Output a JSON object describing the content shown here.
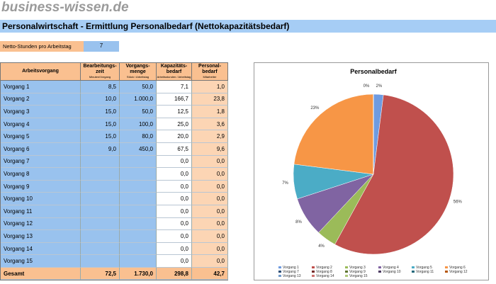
{
  "header": {
    "logo": "business-wissen.de",
    "title": "Personalwirtschaft - Ermittlung Personalbedarf (Nettokapazitätsbedarf)"
  },
  "input": {
    "label": "Netto-Stunden pro Arbeitstag",
    "value": 7
  },
  "table": {
    "columns": [
      {
        "lines": [
          "Arbeitsvorgang"
        ]
      },
      {
        "lines": [
          "Bearbeitungs-",
          "zeit"
        ],
        "unit": "Minuten/Vorgang"
      },
      {
        "lines": [
          "Vorgangs-",
          "menge"
        ],
        "unit": "Stück / Arbeitstag"
      },
      {
        "lines": [
          "Kapazitäts-",
          "bedarf"
        ],
        "unit": "Arbeitsstunden / Arbeitstag"
      },
      {
        "lines": [
          "Personal-",
          "bedarf"
        ],
        "unit": "Mitarbeiter"
      }
    ],
    "rows": [
      [
        "Vorgang 1",
        "8,5",
        "50,0",
        "7,1",
        "1,0"
      ],
      [
        "Vorgang 2",
        "10,0",
        "1.000,0",
        "166,7",
        "23,8"
      ],
      [
        "Vorgang 3",
        "15,0",
        "50,0",
        "12,5",
        "1,8"
      ],
      [
        "Vorgang 4",
        "15,0",
        "100,0",
        "25,0",
        "3,6"
      ],
      [
        "Vorgang 5",
        "15,0",
        "80,0",
        "20,0",
        "2,9"
      ],
      [
        "Vorgang 6",
        "9,0",
        "450,0",
        "67,5",
        "9,6"
      ],
      [
        "Vorgang 7",
        null,
        null,
        "0,0",
        "0,0"
      ],
      [
        "Vorgang 8",
        null,
        null,
        "0,0",
        "0,0"
      ],
      [
        "Vorgang 9",
        null,
        null,
        "0,0",
        "0,0"
      ],
      [
        "Vorgang 10",
        null,
        null,
        "0,0",
        "0,0"
      ],
      [
        "Vorgang 11",
        null,
        null,
        "0,0",
        "0,0"
      ],
      [
        "Vorgang 12",
        null,
        null,
        "0,0",
        "0,0"
      ],
      [
        "Vorgang 13",
        null,
        null,
        "0,0",
        "0,0"
      ],
      [
        "Vorgang 14",
        null,
        null,
        "0,0",
        "0,0"
      ],
      [
        "Vorgang 15",
        null,
        null,
        "0,0",
        "0,0"
      ]
    ],
    "total": [
      "Gesamt",
      "72,5",
      "1.730,0",
      "298,8",
      "42,7"
    ]
  },
  "chart_data": {
    "type": "pie",
    "title": "Personalbedarf",
    "categories": [
      "Vorgang 1",
      "Vorgang 2",
      "Vorgang 3",
      "Vorgang 4",
      "Vorgang 5",
      "Vorgang 6",
      "Vorgang 7",
      "Vorgang 8",
      "Vorgang 9",
      "Vorgang 10",
      "Vorgang 11",
      "Vorgang 12",
      "Vorgang 13",
      "Vorgang 14",
      "Vorgang 15"
    ],
    "values": [
      2,
      56,
      4,
      8,
      7,
      23,
      0,
      0,
      0,
      0,
      0,
      0,
      0,
      0,
      0
    ],
    "value_labels": [
      "2%",
      "56%",
      "4%",
      "8%",
      "7%",
      "23%",
      "0%",
      null,
      null,
      null,
      null,
      null,
      null,
      null,
      null
    ],
    "colors": [
      "#6f9be0",
      "#c0504d",
      "#9bbb59",
      "#8064a2",
      "#4bacc6",
      "#f79646",
      "#2c4d75",
      "#772c2a",
      "#5f7530",
      "#4d3b62",
      "#276a7c",
      "#b65708",
      "#729aca",
      "#cd7371",
      "#afc97a"
    ],
    "legend": "bottom"
  }
}
